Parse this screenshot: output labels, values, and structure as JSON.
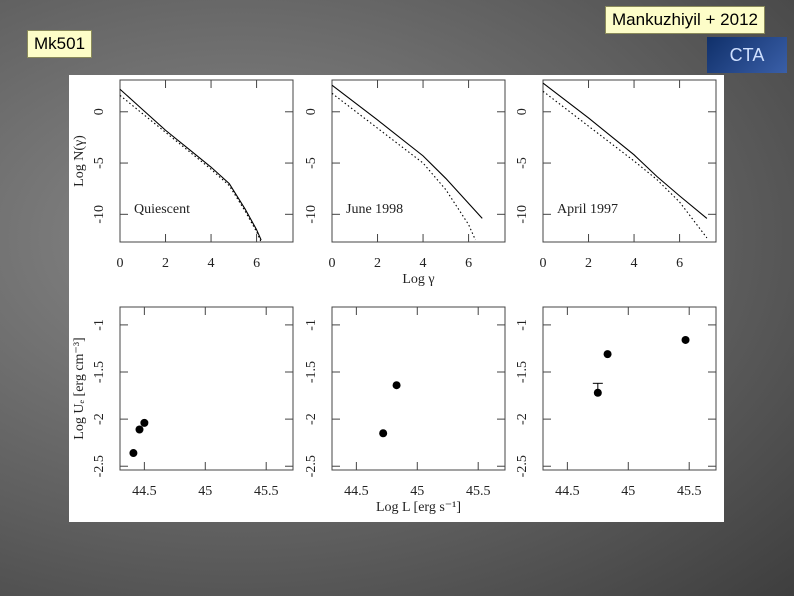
{
  "slide": {
    "label": "Mk501",
    "citation": "Mankuzhiyil + 2012",
    "logo": "CTA"
  },
  "chart_data": [
    {
      "type": "line",
      "y_label": "Log N(γ)",
      "annotation": "Quiescent",
      "xlim": [
        0,
        7.6
      ],
      "ylim": [
        -12.7,
        3.1
      ],
      "xticks": [
        0,
        2,
        4,
        6
      ],
      "yticks": [
        0,
        -5,
        -10
      ],
      "series": [
        {
          "color": "#000000",
          "style": "solid",
          "x": [
            0,
            1,
            2,
            3,
            4,
            4.8,
            5.5,
            6.0,
            6.2
          ],
          "values": [
            2.2,
            0.2,
            -1.8,
            -3.6,
            -5.4,
            -7.0,
            -9.5,
            -11.5,
            -12.5
          ]
        },
        {
          "color": "#000000",
          "style": "dotted",
          "x": [
            0,
            1,
            2,
            3,
            4,
            4.8,
            5.5,
            6.0,
            6.2
          ],
          "values": [
            1.6,
            -0.2,
            -2.0,
            -3.8,
            -5.6,
            -7.2,
            -9.7,
            -11.7,
            -12.7
          ]
        }
      ]
    },
    {
      "type": "line",
      "x_label": "Log γ",
      "annotation": "June 1998",
      "xlim": [
        0,
        7.6
      ],
      "ylim": [
        -12.7,
        3.1
      ],
      "xticks": [
        0,
        2,
        4,
        6
      ],
      "yticks": [
        0,
        -5,
        -10
      ],
      "series": [
        {
          "color": "#000000",
          "style": "solid",
          "x": [
            0,
            2,
            4,
            5,
            6.6
          ],
          "values": [
            2.6,
            -0.8,
            -4.3,
            -6.5,
            -10.4
          ]
        },
        {
          "color": "#000000",
          "style": "dotted",
          "x": [
            0,
            2,
            4,
            5,
            6,
            6.3
          ],
          "values": [
            1.8,
            -1.6,
            -5.0,
            -7.6,
            -11.0,
            -12.5
          ]
        }
      ]
    },
    {
      "type": "line",
      "annotation": "April 1997",
      "xlim": [
        0,
        7.6
      ],
      "ylim": [
        -12.7,
        3.1
      ],
      "xticks": [
        0,
        2,
        4,
        6
      ],
      "yticks": [
        0,
        -5,
        -10
      ],
      "series": [
        {
          "color": "#000000",
          "style": "solid",
          "x": [
            0,
            2,
            4,
            5,
            6,
            7.2
          ],
          "values": [
            2.8,
            -0.6,
            -4.2,
            -6.3,
            -8.2,
            -10.4
          ]
        },
        {
          "color": "#000000",
          "style": "dotted",
          "x": [
            0,
            2,
            4,
            5,
            6,
            7.2
          ],
          "values": [
            2.0,
            -1.4,
            -4.8,
            -6.6,
            -8.8,
            -12.3
          ]
        }
      ]
    },
    {
      "type": "scatter",
      "y_label": "Log Uₑ [erg cm⁻³]",
      "xlim": [
        44.3,
        45.72
      ],
      "ylim": [
        -2.54,
        -0.81
      ],
      "xticks": [
        44.5,
        45,
        45.5
      ],
      "yticks": [
        -1,
        -1.5,
        -2,
        -2.5
      ],
      "series": [
        {
          "color": "#000000",
          "x": [
            44.41,
            44.46,
            44.5
          ],
          "values": [
            -2.36,
            -2.11,
            -2.04
          ]
        }
      ]
    },
    {
      "type": "scatter",
      "x_label": "Log L [erg s⁻¹]",
      "xlim": [
        44.3,
        45.72
      ],
      "ylim": [
        -2.54,
        -0.81
      ],
      "xticks": [
        44.5,
        45,
        45.5
      ],
      "yticks": [
        -1,
        -1.5,
        -2,
        -2.5
      ],
      "series": [
        {
          "color": "#000000",
          "x": [
            44.72,
            44.83
          ],
          "values": [
            -2.15,
            -1.64
          ]
        }
      ]
    },
    {
      "type": "scatter",
      "xlim": [
        44.3,
        45.72
      ],
      "ylim": [
        -2.54,
        -0.81
      ],
      "xticks": [
        44.5,
        45,
        45.5
      ],
      "yticks": [
        -1,
        -1.5,
        -2,
        -2.5
      ],
      "series": [
        {
          "color": "#000000",
          "x": [
            44.75,
            44.83,
            45.47
          ],
          "values": [
            -1.72,
            -1.31,
            -1.16
          ],
          "errors_up": [
            0.1,
            null,
            null
          ]
        }
      ]
    }
  ]
}
